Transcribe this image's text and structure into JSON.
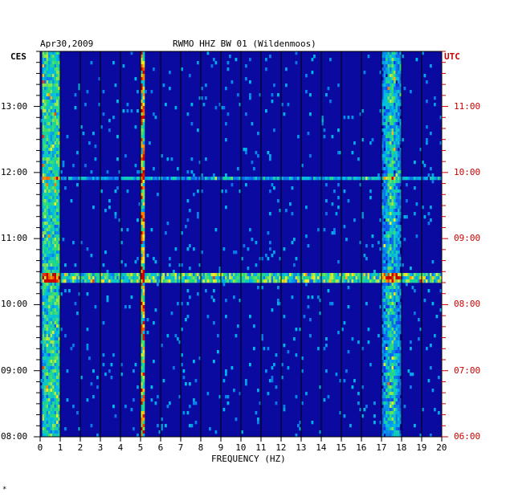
{
  "header": {
    "date": "Apr30,2009",
    "station": "RWMO HHZ BW 01 (Wildenmoos)",
    "left_zone": "CES",
    "right_zone": "UTC"
  },
  "footer": {
    "mark": "*"
  },
  "chart_data": {
    "type": "heatmap",
    "title": "RWMO HHZ BW 01 (Wildenmoos)",
    "date": "Apr30,2009",
    "xlabel": "FREQUENCY (HZ)",
    "xlim": [
      0,
      20
    ],
    "x_ticks": [
      "0",
      "1",
      "2",
      "3",
      "4",
      "5",
      "6",
      "7",
      "8",
      "9",
      "10",
      "11",
      "12",
      "13",
      "14",
      "15",
      "16",
      "17",
      "18",
      "19",
      "20"
    ],
    "left_axis": {
      "label": "CES",
      "ticks": [
        "13:00",
        "12:00",
        "11:00",
        "10:00",
        "09:00",
        "08:00"
      ]
    },
    "right_axis": {
      "label": "UTC",
      "ticks": [
        "11:00",
        "10:00",
        "09:00",
        "08:00",
        "07:00",
        "06:00"
      ]
    },
    "time_range_ces": [
      "08:00",
      "13:50"
    ],
    "colors": {
      "background": "#0a0aa0",
      "right_axis": "#cc0000",
      "grid": "#000000"
    },
    "features": [
      {
        "name": "low-frequency noise band",
        "freq_hz": [
          0.1,
          1.0
        ],
        "level": 0.55
      },
      {
        "name": "spectral line",
        "freq_hz": 5.1,
        "level": 0.9
      },
      {
        "name": "band near 17.5 Hz",
        "freq_hz": [
          17.0,
          18.0
        ],
        "level": 0.6
      },
      {
        "name": "broadband event",
        "time_ces": "10:26",
        "level": 0.7
      },
      {
        "name": "broadband line",
        "time_ces": "11:55",
        "level": 0.45
      }
    ]
  }
}
